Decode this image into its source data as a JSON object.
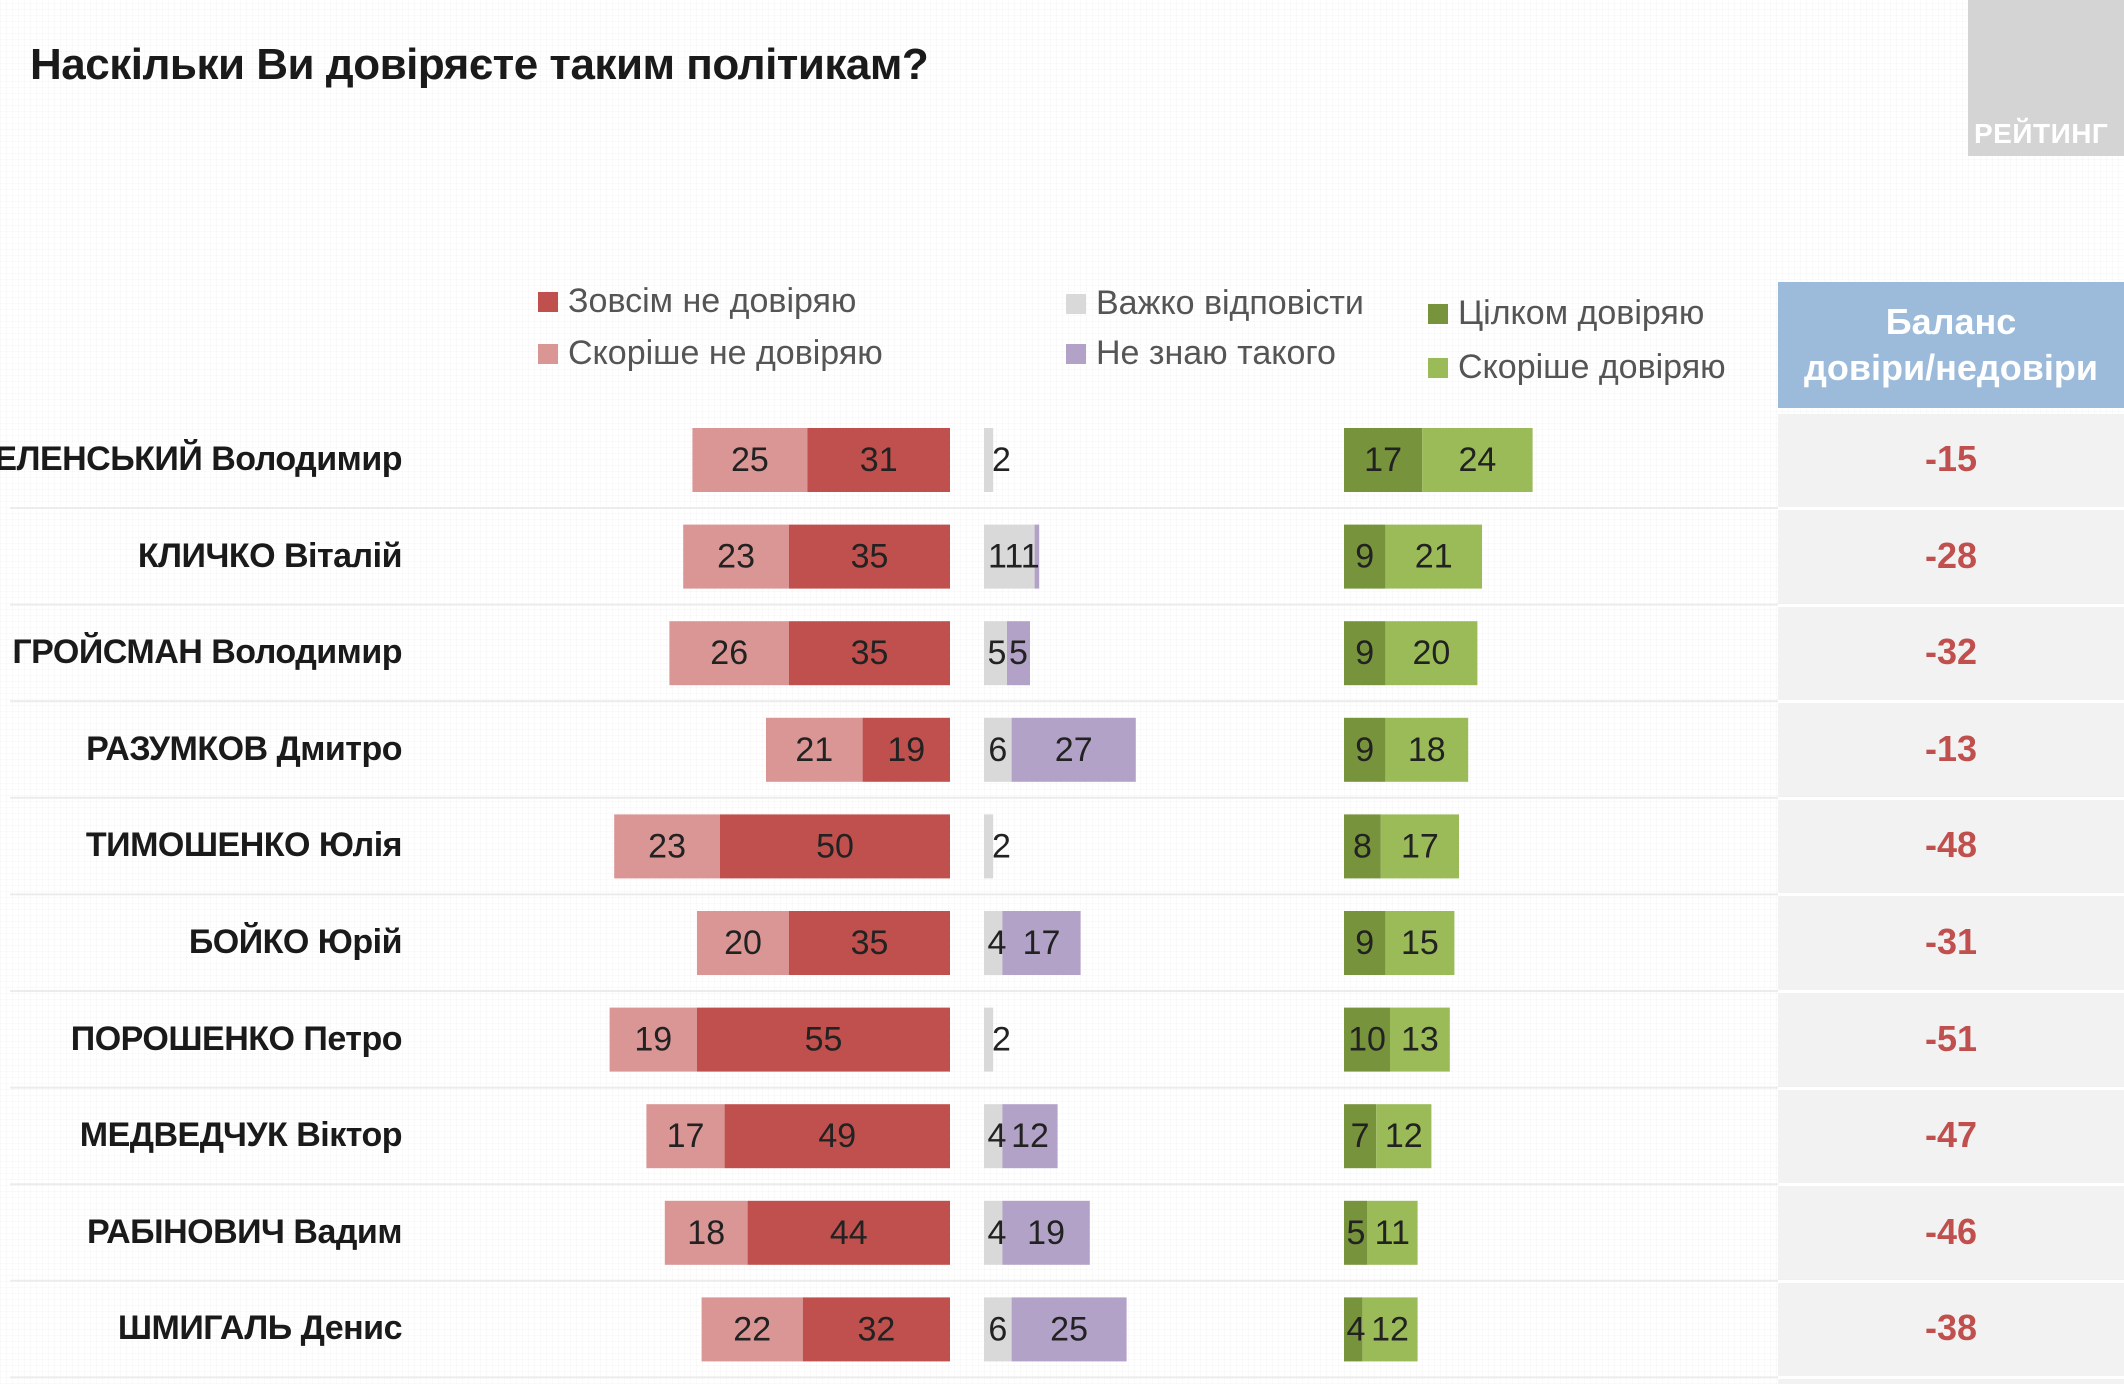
{
  "title": "Наскільки Ви довіряєте таким політикам?",
  "logo_text": "РЕЙТИНГ",
  "balance_header": {
    "line1": "Баланс",
    "line2": "довіри/недовіри"
  },
  "legend": [
    {
      "label": "Зовсім не довіряю",
      "color": "#c0504d"
    },
    {
      "label": "Скоріше не довіряю",
      "color": "#d99694"
    },
    {
      "label": "Важко відповісти",
      "color": "#d9d9d9"
    },
    {
      "label": "Не знаю такого",
      "color": "#b3a2c7"
    },
    {
      "label": "Цілком довіряю",
      "color": "#77933c"
    },
    {
      "label": "Скоріше довіряю",
      "color": "#9bbb59"
    }
  ],
  "chart_data": {
    "type": "bar",
    "categories": [
      "ЗЕЛЕНСЬКИЙ Володимир",
      "КЛИЧКО Віталій",
      "ГРОЙСМАН Володимир",
      "РАЗУМКОВ Дмитро",
      "ТИМОШЕНКО Юлія",
      "БОЙКО Юрій",
      "ПОРОШЕНКО Петро",
      "МЕДВЕДЧУК Віктор",
      "РАБІНОВИЧ Вадим",
      "ШМИГАЛЬ Денис"
    ],
    "series": [
      {
        "name": "Зовсім не довіряю",
        "values": [
          31,
          35,
          35,
          19,
          50,
          35,
          55,
          49,
          44,
          32
        ]
      },
      {
        "name": "Скоріше не довіряю",
        "values": [
          25,
          23,
          26,
          21,
          23,
          20,
          19,
          17,
          18,
          22
        ]
      },
      {
        "name": "Важко відповісти",
        "values": [
          2,
          11,
          5,
          6,
          2,
          4,
          2,
          4,
          4,
          6
        ]
      },
      {
        "name": "Не знаю такого",
        "values": [
          null,
          1,
          5,
          27,
          null,
          17,
          null,
          12,
          19,
          25
        ]
      },
      {
        "name": "Цілком довіряю",
        "values": [
          17,
          9,
          9,
          9,
          8,
          9,
          10,
          7,
          5,
          4
        ]
      },
      {
        "name": "Скоріше довіряю",
        "values": [
          24,
          21,
          20,
          18,
          17,
          15,
          13,
          12,
          11,
          12
        ]
      }
    ],
    "balance": [
      "-15",
      "-28",
      "-32",
      "-13",
      "-48",
      "-31",
      "-51",
      "-47",
      "-46",
      "-38"
    ]
  }
}
